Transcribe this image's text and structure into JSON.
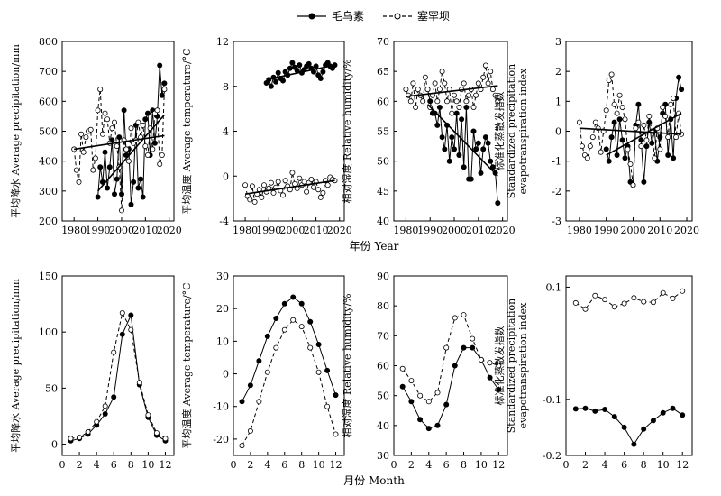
{
  "legend": {
    "items": [
      {
        "label": "毛乌素",
        "style": "solid",
        "marker": "filled"
      },
      {
        "label": "塞罕坝",
        "style": "dashed",
        "marker": "open"
      }
    ]
  },
  "row_axis_titles": {
    "top": "年份  Year",
    "bottom": "月份  Month"
  },
  "chart_data": [
    {
      "id": "annual-precipitation",
      "type": "line",
      "ylabel": "平均降水 Average precipitation/mm",
      "xlim": [
        1975,
        2022
      ],
      "ylim": [
        200,
        800
      ],
      "xticks": [
        1980,
        1990,
        2000,
        2010,
        2020
      ],
      "yticks": [
        200,
        300,
        400,
        500,
        600,
        700,
        800
      ],
      "series": [
        {
          "name": "毛乌素",
          "x": [
            1990,
            1991,
            1992,
            1993,
            1994,
            1995,
            1996,
            1997,
            1998,
            1999,
            2000,
            2001,
            2002,
            2003,
            2004,
            2005,
            2006,
            2007,
            2008,
            2009,
            2010,
            2011,
            2012,
            2013,
            2014,
            2015,
            2016,
            2017,
            2018
          ],
          "values": [
            280,
            380,
            330,
            430,
            310,
            380,
            470,
            290,
            340,
            480,
            290,
            570,
            420,
            440,
            255,
            330,
            520,
            310,
            340,
            280,
            540,
            560,
            420,
            570,
            460,
            550,
            720,
            620,
            660
          ]
        },
        {
          "name": "塞罕坝",
          "x": [
            1980,
            1981,
            1982,
            1983,
            1984,
            1985,
            1986,
            1987,
            1988,
            1989,
            1990,
            1991,
            1992,
            1993,
            1994,
            1995,
            1996,
            1997,
            1998,
            1999,
            2000,
            2001,
            2002,
            2003,
            2004,
            2005,
            2006,
            2007,
            2008,
            2009,
            2010,
            2011,
            2012,
            2013,
            2014,
            2015,
            2016,
            2017,
            2018
          ],
          "values": [
            440,
            370,
            330,
            490,
            430,
            480,
            500,
            505,
            370,
            410,
            570,
            640,
            490,
            560,
            540,
            460,
            510,
            530,
            450,
            380,
            235,
            470,
            440,
            400,
            510,
            460,
            470,
            530,
            480,
            520,
            450,
            420,
            510,
            440,
            560,
            570,
            390,
            420,
            640
          ]
        }
      ],
      "trendlines": [
        {
          "series": "毛乌素",
          "x": [
            1990,
            2018
          ],
          "y": [
            300,
            555
          ]
        },
        {
          "series": "塞罕坝",
          "x": [
            1980,
            2018
          ],
          "y": [
            440,
            485
          ]
        }
      ]
    },
    {
      "id": "annual-temperature",
      "type": "line",
      "ylabel": "平均温度 Average  temperature/°C",
      "xlim": [
        1975,
        2022
      ],
      "ylim": [
        -4,
        12
      ],
      "xticks": [
        1980,
        1990,
        2000,
        2010,
        2020
      ],
      "yticks": [
        -4,
        0,
        4,
        8,
        12
      ],
      "series": [
        {
          "name": "毛乌素",
          "x": [
            1989,
            1990,
            1991,
            1992,
            1993,
            1994,
            1995,
            1996,
            1997,
            1998,
            1999,
            2000,
            2001,
            2002,
            2003,
            2004,
            2005,
            2006,
            2007,
            2008,
            2009,
            2010,
            2011,
            2012,
            2013,
            2014,
            2015,
            2016,
            2017,
            2018
          ],
          "values": [
            8.3,
            8.6,
            8.0,
            8.8,
            8.4,
            9.2,
            8.7,
            8.5,
            9.3,
            9.0,
            9.6,
            10.1,
            9.7,
            9.4,
            9.9,
            9.2,
            9.5,
            9.8,
            10.0,
            9.6,
            9.3,
            9.8,
            9.0,
            8.7,
            9.3,
            9.9,
            10.1,
            9.8,
            9.6,
            9.9
          ]
        },
        {
          "name": "塞罕坝",
          "x": [
            1980,
            1981,
            1982,
            1983,
            1984,
            1985,
            1986,
            1987,
            1988,
            1989,
            1990,
            1991,
            1992,
            1993,
            1994,
            1995,
            1996,
            1997,
            1998,
            1999,
            2000,
            2001,
            2002,
            2003,
            2004,
            2005,
            2006,
            2007,
            2008,
            2009,
            2010,
            2011,
            2012,
            2013,
            2014,
            2015,
            2016,
            2017,
            2018
          ],
          "values": [
            -0.8,
            -1.8,
            -2.1,
            -0.9,
            -2.3,
            -1.6,
            -1.2,
            -1.9,
            -0.8,
            -1.4,
            -1.1,
            -0.6,
            -1.5,
            -1.0,
            -0.5,
            -1.3,
            -1.7,
            -0.4,
            -0.9,
            -1.2,
            0.3,
            -0.7,
            -1.1,
            -0.2,
            -0.8,
            -0.5,
            -1.4,
            -0.6,
            -0.3,
            -1.0,
            -0.5,
            -1.2,
            -1.9,
            -1.5,
            -0.4,
            -0.8,
            -0.1,
            -0.3,
            -0.4
          ]
        }
      ],
      "trendlines": [
        {
          "series": "毛乌素",
          "x": [
            1989,
            2018
          ],
          "y": [
            8.6,
            9.9
          ]
        },
        {
          "series": "塞罕坝",
          "x": [
            1980,
            2018
          ],
          "y": [
            -1.6,
            -0.4
          ]
        }
      ]
    },
    {
      "id": "annual-humidity",
      "type": "line",
      "ylabel": "相对湿度 Relative  humidity/%",
      "xlim": [
        1975,
        2022
      ],
      "ylim": [
        40,
        70
      ],
      "xticks": [
        1980,
        1990,
        2000,
        2010,
        2020
      ],
      "yticks": [
        40,
        45,
        50,
        55,
        60,
        65,
        70
      ],
      "series": [
        {
          "name": "毛乌素",
          "x": [
            1989,
            1990,
            1991,
            1992,
            1993,
            1994,
            1995,
            1996,
            1997,
            1998,
            1999,
            2000,
            2001,
            2002,
            2003,
            2004,
            2005,
            2006,
            2007,
            2008,
            2009,
            2010,
            2011,
            2012,
            2013,
            2014,
            2015,
            2016,
            2017,
            2018
          ],
          "values": [
            62,
            60,
            58,
            58,
            56,
            59,
            54,
            52,
            56,
            50,
            54,
            52,
            58,
            51,
            57,
            49,
            59,
            47,
            47,
            55,
            52,
            53,
            48,
            52,
            54,
            53,
            50,
            49,
            48,
            43
          ]
        },
        {
          "name": "塞罕坝",
          "x": [
            1980,
            1981,
            1982,
            1983,
            1984,
            1985,
            1986,
            1987,
            1988,
            1989,
            1990,
            1991,
            1992,
            1993,
            1994,
            1995,
            1996,
            1997,
            1998,
            1999,
            2000,
            2001,
            2002,
            2003,
            2004,
            2005,
            2006,
            2007,
            2008,
            2009,
            2010,
            2011,
            2012,
            2013,
            2014,
            2015,
            2016,
            2017,
            2018
          ],
          "values": [
            62,
            61,
            60,
            63,
            59,
            62,
            61,
            60,
            64,
            62,
            59,
            61,
            63,
            60,
            62,
            65,
            63,
            60,
            62,
            58,
            61,
            60,
            59,
            62,
            63,
            60,
            61,
            62,
            59,
            61,
            63,
            62,
            64,
            66,
            63,
            65,
            62,
            61,
            60
          ]
        }
      ],
      "trendlines": [
        {
          "series": "毛乌素",
          "x": [
            1989,
            2018
          ],
          "y": [
            59.5,
            47.5
          ]
        },
        {
          "series": "塞罕坝",
          "x": [
            1980,
            2018
          ],
          "y": [
            60.8,
            62.6
          ]
        }
      ]
    },
    {
      "id": "annual-spei",
      "type": "line",
      "ylabel": [
        "标准化蒸散发指数",
        "Standardized precipitation",
        "evapotranspiration index"
      ],
      "xlim": [
        1975,
        2022
      ],
      "ylim": [
        -3,
        3
      ],
      "xticks": [
        1980,
        1990,
        2000,
        2010,
        2020
      ],
      "yticks": [
        -3,
        -2,
        -1,
        0,
        1,
        2,
        3
      ],
      "series": [
        {
          "name": "毛乌素",
          "x": [
            1990,
            1991,
            1992,
            1993,
            1994,
            1995,
            1996,
            1997,
            1998,
            1999,
            2000,
            2001,
            2002,
            2003,
            2004,
            2005,
            2006,
            2007,
            2008,
            2009,
            2010,
            2011,
            2012,
            2013,
            2014,
            2015,
            2016,
            2017,
            2018
          ],
          "values": [
            -0.6,
            -1.0,
            -0.2,
            0.3,
            -0.8,
            0.4,
            -0.3,
            -0.9,
            -0.5,
            -1.7,
            -1.8,
            0.2,
            0.9,
            -0.3,
            -1.7,
            -0.5,
            0.3,
            -0.4,
            0.0,
            -1.0,
            -0.2,
            0.6,
            0.9,
            -0.8,
            0.4,
            -0.9,
            1.1,
            1.8,
            1.4
          ]
        },
        {
          "name": "塞罕坝",
          "x": [
            1980,
            1981,
            1982,
            1983,
            1984,
            1985,
            1986,
            1987,
            1988,
            1989,
            1990,
            1991,
            1992,
            1993,
            1994,
            1995,
            1996,
            1997,
            1998,
            1999,
            2000,
            2001,
            2002,
            2003,
            2004,
            2005,
            2006,
            2007,
            2008,
            2009,
            2010,
            2011,
            2012,
            2013,
            2014,
            2015,
            2016,
            2017,
            2018
          ],
          "values": [
            0.3,
            -0.5,
            -0.8,
            -0.9,
            -0.5,
            -0.2,
            0.3,
            0.1,
            -0.7,
            0.0,
            0.7,
            1.7,
            1.9,
            0.9,
            0.6,
            1.2,
            0.8,
            0.4,
            -0.6,
            -1.1,
            -1.8,
            0.1,
            0.3,
            -0.5,
            0.2,
            -0.3,
            0.5,
            0.0,
            -0.9,
            0.1,
            -0.6,
            0.8,
            0.5,
            -0.2,
            0.9,
            1.1,
            -0.2,
            0.6,
            -0.1
          ]
        }
      ],
      "trendlines": [
        {
          "series": "毛乌素",
          "x": [
            1990,
            2018
          ],
          "y": [
            -0.8,
            0.6
          ]
        },
        {
          "series": "塞罕坝",
          "x": [
            1980,
            2018
          ],
          "y": [
            0.1,
            -0.1
          ]
        }
      ]
    },
    {
      "id": "monthly-precipitation",
      "type": "line",
      "ylabel": "平均降水 Average precipitation/mm",
      "xlim": [
        0,
        13
      ],
      "ylim": [
        -10,
        150
      ],
      "xticks": [
        0,
        2,
        4,
        6,
        8,
        10,
        12
      ],
      "yticks": [
        0,
        50,
        100,
        150
      ],
      "series": [
        {
          "name": "毛乌素",
          "x": [
            1,
            2,
            3,
            4,
            5,
            6,
            7,
            8,
            9,
            10,
            11,
            12
          ],
          "values": [
            3,
            5,
            9,
            17,
            27,
            42,
            98,
            115,
            53,
            24,
            8,
            3
          ]
        },
        {
          "name": "塞罕坝",
          "x": [
            1,
            2,
            3,
            4,
            5,
            6,
            7,
            8,
            9,
            10,
            11,
            12
          ],
          "values": [
            5,
            6,
            11,
            20,
            34,
            82,
            117,
            102,
            55,
            26,
            10,
            5
          ]
        }
      ]
    },
    {
      "id": "monthly-temperature",
      "type": "line",
      "ylabel": "平均温度 Average  temperature/°C",
      "xlim": [
        0,
        13
      ],
      "ylim": [
        -25,
        30
      ],
      "xticks": [
        0,
        2,
        4,
        6,
        8,
        10,
        12
      ],
      "yticks": [
        -20,
        -10,
        0,
        10,
        20,
        30
      ],
      "series": [
        {
          "name": "毛乌素",
          "x": [
            1,
            2,
            3,
            4,
            5,
            6,
            7,
            8,
            9,
            10,
            11,
            12
          ],
          "values": [
            -8.5,
            -3.5,
            4,
            11.5,
            17,
            21.5,
            23.5,
            21.5,
            16,
            9,
            1,
            -6.5
          ]
        },
        {
          "name": "塞罕坝",
          "x": [
            1,
            2,
            3,
            4,
            5,
            6,
            7,
            8,
            9,
            10,
            11,
            12
          ],
          "values": [
            -22,
            -17.5,
            -8.5,
            0.5,
            8,
            13.5,
            16.5,
            14.5,
            8,
            0.5,
            -10,
            -18.5
          ]
        }
      ]
    },
    {
      "id": "monthly-humidity",
      "type": "line",
      "ylabel": "相对湿度 Relative  humidity/%",
      "xlim": [
        0,
        13
      ],
      "ylim": [
        30,
        90
      ],
      "xticks": [
        0,
        2,
        4,
        6,
        8,
        10,
        12
      ],
      "yticks": [
        30,
        40,
        50,
        60,
        70,
        80,
        90
      ],
      "series": [
        {
          "name": "毛乌素",
          "x": [
            1,
            2,
            3,
            4,
            5,
            6,
            7,
            8,
            9,
            10,
            11,
            12
          ],
          "values": [
            53,
            48,
            42,
            39,
            40,
            47,
            60,
            66,
            66,
            62,
            56,
            52
          ]
        },
        {
          "name": "塞罕坝",
          "x": [
            1,
            2,
            3,
            4,
            5,
            6,
            7,
            8,
            9,
            10,
            11,
            12
          ],
          "values": [
            59,
            55,
            50,
            48,
            51,
            66,
            76,
            77,
            69,
            62,
            61,
            60
          ]
        }
      ]
    },
    {
      "id": "monthly-spei",
      "type": "line",
      "ylabel": [
        "标准化蒸散发指数",
        "Standardized precipitation",
        "evapotranspiration index"
      ],
      "xlim": [
        0,
        13
      ],
      "ylim": [
        -0.2,
        0.12
      ],
      "xticks": [
        0,
        2,
        4,
        6,
        8,
        10,
        12
      ],
      "yticks": [
        -0.2,
        -0.1,
        0.1
      ],
      "yticklabels": [
        "-0.2",
        "-0.1",
        "0.1"
      ],
      "series": [
        {
          "name": "毛乌素",
          "x": [
            1,
            2,
            3,
            4,
            5,
            6,
            7,
            8,
            9,
            10,
            11,
            12
          ],
          "values": [
            -0.117,
            -0.116,
            -0.121,
            -0.118,
            -0.131,
            -0.15,
            -0.18,
            -0.153,
            -0.138,
            -0.124,
            -0.116,
            -0.128
          ]
        },
        {
          "name": "塞罕坝",
          "x": [
            1,
            2,
            3,
            4,
            5,
            6,
            7,
            8,
            9,
            10,
            11,
            12
          ],
          "values": [
            0.072,
            0.061,
            0.085,
            0.078,
            0.065,
            0.071,
            0.081,
            0.074,
            0.073,
            0.09,
            0.08,
            0.093
          ]
        }
      ]
    }
  ]
}
